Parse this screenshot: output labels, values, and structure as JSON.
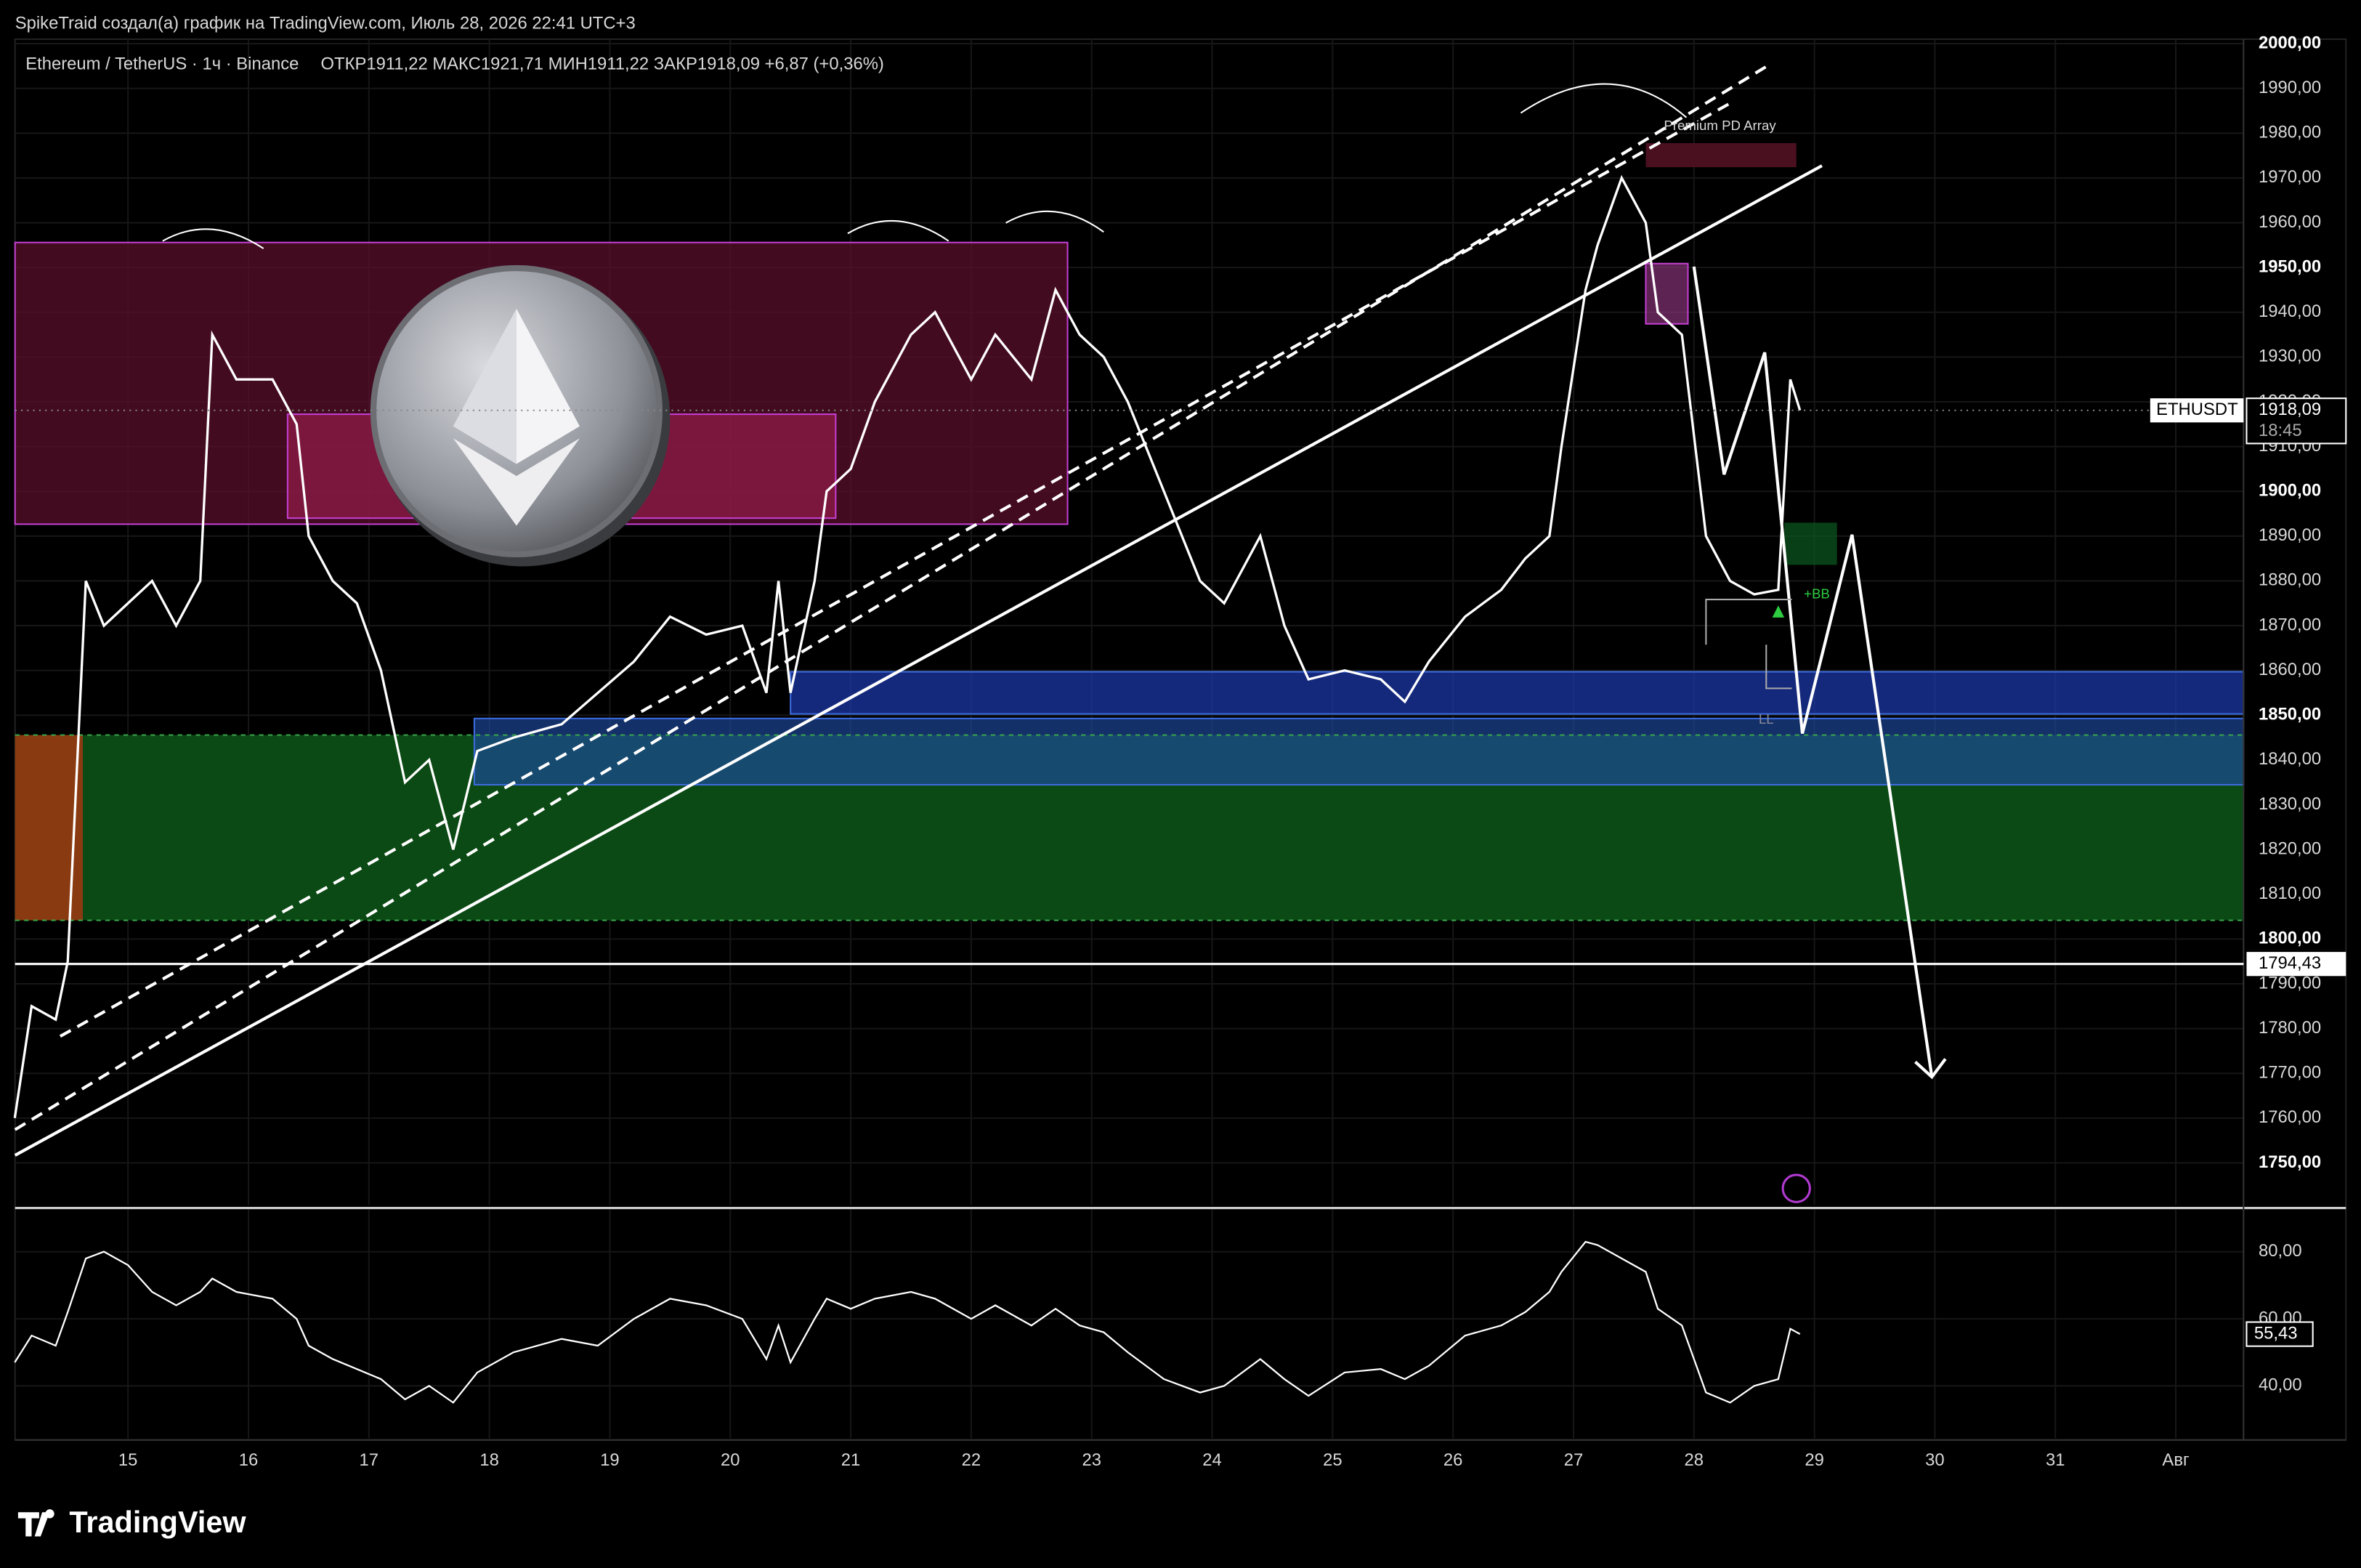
{
  "header": {
    "attribution": "SpikeTraid создал(а) график на TradingView.com, Июль 28, 2026 22:41 UTC+3"
  },
  "chart_data": [
    {
      "type": "line",
      "title": "Ethereum / TetherUS · 1ч · Binance",
      "ohlc": "ОТКР1911,22  МАКС1921,71  МИН1911,22  ЗАКР1918,09  +6,87 (+0,36%)",
      "x": [
        14.06,
        14.2,
        14.4,
        14.5,
        14.65,
        14.8,
        15.0,
        15.2,
        15.4,
        15.6,
        15.7,
        15.9,
        16.2,
        16.4,
        16.5,
        16.7,
        16.9,
        17.1,
        17.3,
        17.5,
        17.7,
        17.9,
        18.2,
        18.6,
        18.9,
        19.2,
        19.5,
        19.8,
        20.1,
        20.3,
        20.4,
        20.5,
        20.7,
        20.8,
        21.0,
        21.2,
        21.5,
        21.7,
        22.0,
        22.2,
        22.5,
        22.7,
        22.9,
        23.1,
        23.3,
        23.6,
        23.9,
        24.1,
        24.4,
        24.6,
        24.8,
        25.1,
        25.4,
        25.6,
        25.8,
        26.1,
        26.4,
        26.6,
        26.8,
        26.9,
        27.1,
        27.2,
        27.4,
        27.6,
        27.7,
        27.9,
        28.1,
        28.3,
        28.5,
        28.7,
        28.8,
        28.88
      ],
      "series": [
        {
          "name": "ETHUSDT",
          "color": "#ffffff",
          "values": [
            1760,
            1785,
            1782,
            1795,
            1880,
            1870,
            1875,
            1880,
            1870,
            1880,
            1935,
            1925,
            1925,
            1915,
            1890,
            1880,
            1875,
            1860,
            1835,
            1840,
            1820,
            1842,
            1845,
            1848,
            1855,
            1862,
            1872,
            1868,
            1870,
            1855,
            1880,
            1855,
            1880,
            1900,
            1905,
            1920,
            1935,
            1940,
            1925,
            1935,
            1925,
            1945,
            1935,
            1930,
            1920,
            1900,
            1880,
            1875,
            1890,
            1870,
            1858,
            1860,
            1858,
            1853,
            1862,
            1872,
            1878,
            1885,
            1890,
            1910,
            1945,
            1955,
            1970,
            1960,
            1940,
            1935,
            1890,
            1880,
            1877,
            1878,
            1925,
            1918.09
          ]
        }
      ],
      "xlim": [
        14.0625,
        32.5625
      ],
      "ylim": [
        1740.6,
        2001
      ],
      "yticks": [
        {
          "value": 1750,
          "label": "1750,00"
        },
        {
          "value": 1760,
          "label": "1760,00"
        },
        {
          "value": 1770,
          "label": "1770,00"
        },
        {
          "value": 1780,
          "label": "1780,00"
        },
        {
          "value": 1790,
          "label": "1790,00"
        },
        {
          "value": 1800,
          "label": "1800,00"
        },
        {
          "value": 1810,
          "label": "1810,00"
        },
        {
          "value": 1820,
          "label": "1820,00"
        },
        {
          "value": 1830,
          "label": "1830,00"
        },
        {
          "value": 1840,
          "label": "1840,00"
        },
        {
          "value": 1850,
          "label": "1850,00"
        },
        {
          "value": 1860,
          "label": "1860,00"
        },
        {
          "value": 1870,
          "label": "1870,00"
        },
        {
          "value": 1880,
          "label": "1880,00"
        },
        {
          "value": 1890,
          "label": "1890,00"
        },
        {
          "value": 1900,
          "label": "1900,00"
        },
        {
          "value": 1910,
          "label": "1910,00"
        },
        {
          "value": 1920,
          "label": "1920,00"
        },
        {
          "value": 1930,
          "label": "1930,00"
        },
        {
          "value": 1940,
          "label": "1940,00"
        },
        {
          "value": 1950,
          "label": "1950,00"
        },
        {
          "value": 1960,
          "label": "1960,00"
        },
        {
          "value": 1970,
          "label": "1970,00"
        },
        {
          "value": 1980,
          "label": "1980,00"
        },
        {
          "value": 1990,
          "label": "1990,00"
        },
        {
          "value": 2000,
          "label": "2000,00"
        }
      ],
      "grid": true,
      "last_price": {
        "value": 1918.09,
        "label": "1918,09"
      },
      "countdown": "18:45",
      "level": {
        "value": 1794.43,
        "label": "1794,43"
      },
      "annotations": [
        "Premium PD Array",
        "+BB",
        "LL"
      ]
    },
    {
      "type": "line",
      "x": [
        14.06,
        14.2,
        14.4,
        14.5,
        14.65,
        14.8,
        15.0,
        15.2,
        15.4,
        15.6,
        15.7,
        15.9,
        16.2,
        16.4,
        16.5,
        16.7,
        16.9,
        17.1,
        17.3,
        17.5,
        17.7,
        17.9,
        18.2,
        18.6,
        18.9,
        19.2,
        19.5,
        19.8,
        20.1,
        20.3,
        20.4,
        20.5,
        20.7,
        20.8,
        21.0,
        21.2,
        21.5,
        21.7,
        22.0,
        22.2,
        22.5,
        22.7,
        22.9,
        23.1,
        23.3,
        23.6,
        23.9,
        24.1,
        24.4,
        24.6,
        24.8,
        25.1,
        25.4,
        25.6,
        25.8,
        26.1,
        26.4,
        26.6,
        26.8,
        26.9,
        27.1,
        27.2,
        27.4,
        27.6,
        27.7,
        27.9,
        28.1,
        28.3,
        28.5,
        28.7,
        28.8,
        28.88
      ],
      "series": [
        {
          "color": "#ffffff",
          "values": [
            47,
            55,
            52,
            62,
            78,
            80,
            76,
            68,
            64,
            68,
            72,
            68,
            66,
            60,
            52,
            48,
            45,
            42,
            36,
            40,
            35,
            44,
            50,
            54,
            52,
            60,
            66,
            64,
            60,
            48,
            58,
            47,
            60,
            66,
            63,
            66,
            68,
            66,
            60,
            64,
            58,
            63,
            58,
            56,
            50,
            42,
            38,
            40,
            48,
            42,
            37,
            44,
            45,
            42,
            46,
            55,
            58,
            62,
            68,
            74,
            83,
            82,
            78,
            74,
            63,
            58,
            38,
            35,
            40,
            42,
            57,
            55.43
          ]
        }
      ],
      "xlim": [
        14.0625,
        32.5625
      ],
      "xticks": [
        15,
        16,
        17,
        18,
        19,
        20,
        21,
        22,
        23,
        24,
        25,
        26,
        27,
        28,
        29,
        30,
        31,
        {
          "value": 32,
          "label": "Авг"
        }
      ],
      "ylim": [
        24.3,
        92.6
      ],
      "yticks": [
        {
          "value": 40,
          "label": "40,00"
        },
        {
          "value": 60,
          "label": "60,00"
        },
        {
          "value": 80,
          "label": "80,00"
        }
      ],
      "grid": true,
      "last_value": {
        "value": 55.43,
        "label": "55,43"
      }
    }
  ],
  "footer": {
    "logo": "TradingView"
  }
}
